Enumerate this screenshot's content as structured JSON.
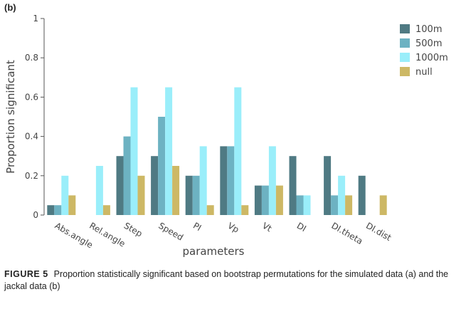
{
  "panel_label": "(b)",
  "caption": {
    "label": "FIGURE 5",
    "text": "Proportion statistically significant based on bootstrap permutations for the simulated data (a) and the jackal data (b)"
  },
  "chart_data": {
    "type": "bar",
    "xlabel": "parameters",
    "ylabel": "Proportion significant",
    "ylim": [
      0,
      1
    ],
    "y_ticks": [
      0,
      0.2,
      0.4,
      0.6,
      0.8,
      1
    ],
    "y_tick_labels": [
      "0",
      "0.2",
      "0.4",
      "0.6",
      "0.8",
      "1"
    ],
    "grid": false,
    "legend_position": "top-right",
    "categories": [
      "Abs.angle",
      "Rel.angle",
      "Step",
      "Speed",
      "PI",
      "Vp",
      "Vt",
      "DI",
      "DI.theta",
      "DI.dist"
    ],
    "series": [
      {
        "name": "100m",
        "color": "#4f7a83",
        "values": [
          0.05,
          0,
          0.3,
          0.3,
          0.2,
          0.35,
          0.15,
          0.3,
          0.3,
          0.2
        ]
      },
      {
        "name": "500m",
        "color": "#6db2c2",
        "values": [
          0.05,
          0,
          0.4,
          0.5,
          0.2,
          0.35,
          0.15,
          0.1,
          0.1,
          0
        ]
      },
      {
        "name": "1000m",
        "color": "#9aeefa",
        "values": [
          0.2,
          0.25,
          0.65,
          0.65,
          0.35,
          0.65,
          0.35,
          0.1,
          0.2,
          0
        ]
      },
      {
        "name": "null",
        "color": "#cdb865",
        "values": [
          0.1,
          0.05,
          0.2,
          0.25,
          0.05,
          0.05,
          0.15,
          0,
          0.1,
          0.1
        ]
      }
    ]
  }
}
